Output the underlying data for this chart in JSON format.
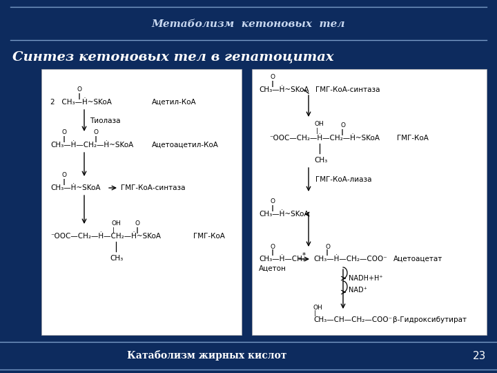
{
  "bg_color": "#0d2b5e",
  "header_text": "Метаболизм  кетоновых  тел",
  "subtitle_text": "Синтез кетоновых тел в гепатоцитах",
  "footer_text": "Катаболизм жирных кислот",
  "page_number": "23",
  "line_color": "#7a9cc8",
  "text_color_header": "#c8d8f0",
  "text_color_subtitle": "white",
  "text_color_footer": "white",
  "fig_width": 7.2,
  "fig_height": 5.4,
  "dpi": 100
}
